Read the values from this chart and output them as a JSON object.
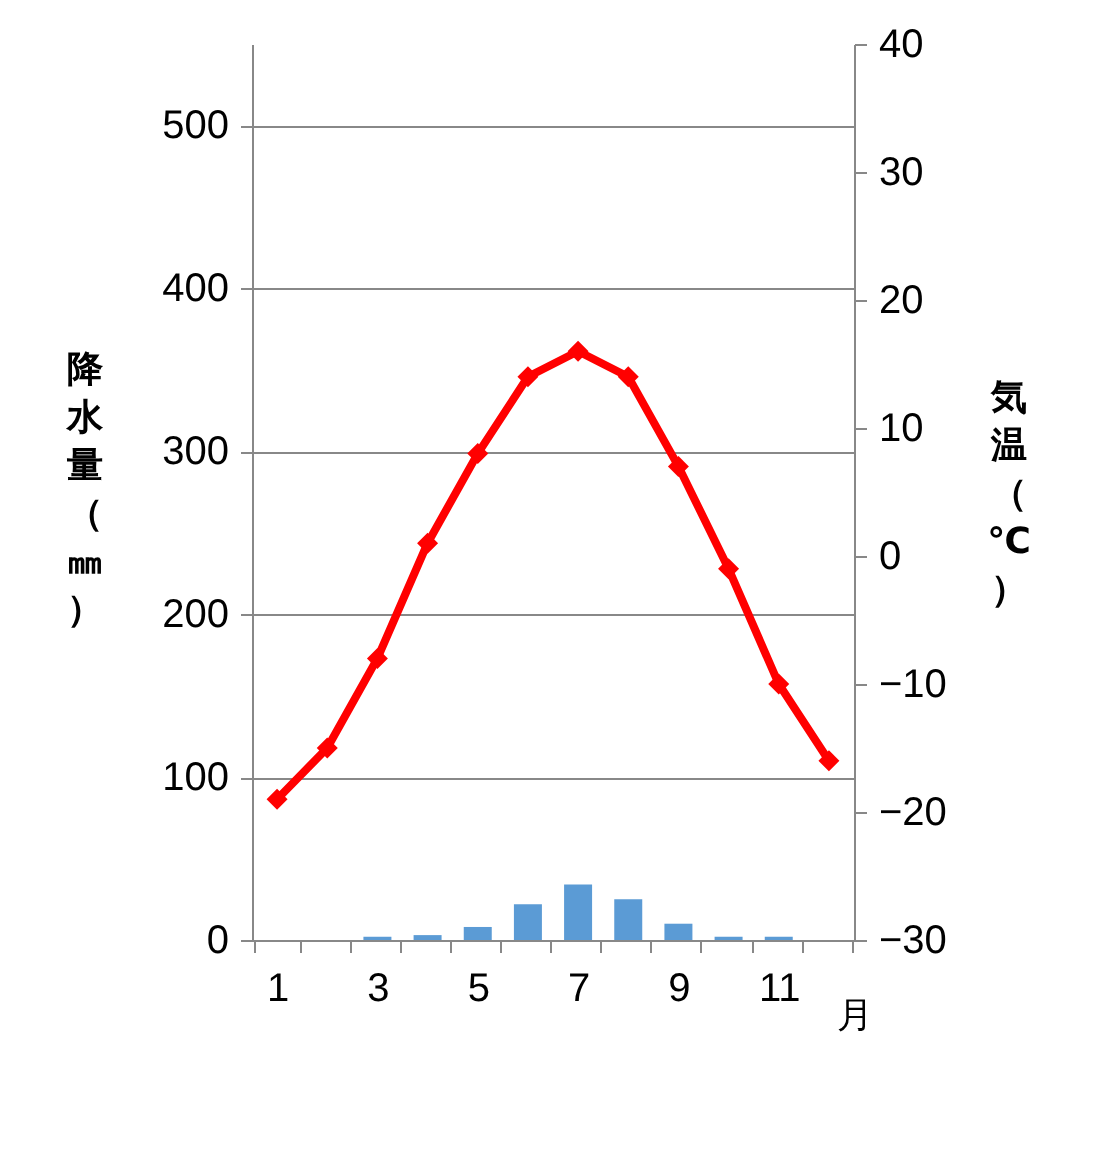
{
  "chart_data": {
    "type": "bar",
    "xlabel": "月",
    "ylabel": "降水量（㎜）",
    "y2label": "気温（℃）",
    "categories": [
      "1",
      null,
      "3",
      null,
      "5",
      null,
      "7",
      null,
      "9",
      null,
      "11",
      null
    ],
    "series": [
      {
        "color": "#5b9bd5",
        "values": [
          0,
          0,
          2,
          3,
          8,
          22,
          34,
          25,
          10,
          2,
          2,
          0
        ]
      },
      {
        "type": "line",
        "axis": "y2",
        "color": "#ff0000",
        "marker": "diamond",
        "values": [
          -19,
          -15,
          -8,
          1,
          8,
          14,
          16,
          14,
          7,
          -1,
          -10,
          -16
        ]
      }
    ],
    "ylim": [
      0,
      550
    ],
    "yticks": [
      0,
      100,
      200,
      300,
      400,
      500
    ],
    "y2lim": [
      -30,
      40
    ],
    "y2ticks": [
      -30,
      -20,
      -10,
      0,
      10,
      20,
      30,
      40
    ],
    "grid": "y"
  }
}
